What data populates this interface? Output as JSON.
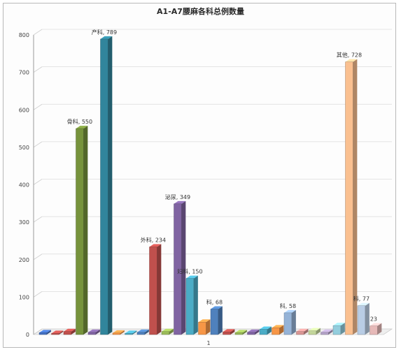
{
  "chart_data": {
    "type": "bar",
    "title": "A1-A7腰麻各科总例数量",
    "categories": [
      "1"
    ],
    "ylim": [
      0,
      800
    ],
    "yticks": [
      0,
      100,
      200,
      300,
      400,
      500,
      600,
      700,
      800
    ],
    "grid": true,
    "legend": "none",
    "series": [
      {
        "value": 5,
        "color": "#4472c4"
      },
      {
        "value": 3,
        "color": "#c0504d"
      },
      {
        "value": 8,
        "color": "#c0504d"
      },
      {
        "value": 550,
        "label": "骨科, 550",
        "color": "#77933c"
      },
      {
        "value": 6,
        "color": "#8064a2"
      },
      {
        "value": 789,
        "label": "产科, 789",
        "color": "#31859c"
      },
      {
        "value": 4,
        "color": "#f79646"
      },
      {
        "value": 3,
        "color": "#4bacc6"
      },
      {
        "value": 6,
        "color": "#4f81bd"
      },
      {
        "value": 234,
        "label": "外科, 234",
        "color": "#c0504d"
      },
      {
        "value": 8,
        "color": "#9bbb59"
      },
      {
        "value": 349,
        "label": "泌尿, 349",
        "color": "#8064a2"
      },
      {
        "value": 150,
        "label": "妇科, 150",
        "color": "#4bacc6"
      },
      {
        "value": 33,
        "color": "#f79646"
      },
      {
        "value": 68,
        "label": "科, 68",
        "color": "#4f81bd"
      },
      {
        "value": 7,
        "color": "#c0504d"
      },
      {
        "value": 5,
        "color": "#9bbb59"
      },
      {
        "value": 6,
        "color": "#8064a2"
      },
      {
        "value": 14,
        "color": "#4bacc6"
      },
      {
        "value": 18,
        "color": "#f79646"
      },
      {
        "value": 58,
        "label": "科, 58",
        "color": "#95b3d7"
      },
      {
        "value": 8,
        "color": "#d99694"
      },
      {
        "value": 10,
        "color": "#c3d69b"
      },
      {
        "value": 6,
        "color": "#b3a2c7"
      },
      {
        "value": 24,
        "color": "#93cddd"
      },
      {
        "value": 728,
        "label": "其他, 728",
        "color": "#fac090"
      },
      {
        "value": 77,
        "label": "科, 77",
        "color": "#b9cde5"
      },
      {
        "value": 23,
        "label": "23",
        "color": "#e6b9b8"
      }
    ]
  }
}
